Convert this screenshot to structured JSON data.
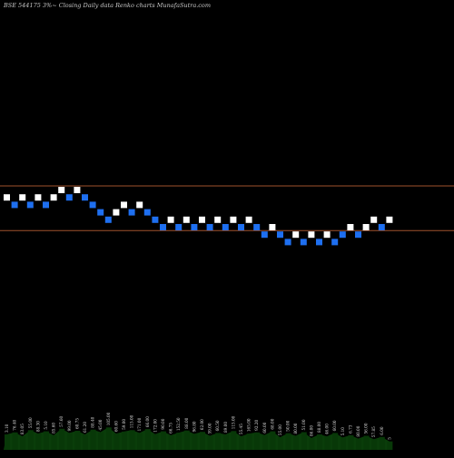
{
  "header": {
    "title": "BSE 544175 3%~ Closing Daily data  Renko  charts MunafaSutra.com"
  },
  "colors": {
    "background": "#000000",
    "up_brick": "#ffffff",
    "down_brick": "#1e6ff0",
    "reference_line": "#a0522d",
    "volume_fill": "#0a3d0a"
  },
  "chart_data": {
    "type": "renko",
    "title": "BSE 544175 3%~ Closing Daily data  Renko  charts MunafaSutra.com",
    "brick_step": "3%",
    "grid": false,
    "reference_levels": [
      0,
      -6
    ],
    "bricks": [
      {
        "dir": "up",
        "level": -1
      },
      {
        "dir": "down",
        "level": -2
      },
      {
        "dir": "up",
        "level": -1
      },
      {
        "dir": "down",
        "level": -2
      },
      {
        "dir": "up",
        "level": -1
      },
      {
        "dir": "down",
        "level": -2
      },
      {
        "dir": "up",
        "level": -1
      },
      {
        "dir": "up",
        "level": 0
      },
      {
        "dir": "down",
        "level": -1
      },
      {
        "dir": "up",
        "level": 0
      },
      {
        "dir": "down",
        "level": -1
      },
      {
        "dir": "down",
        "level": -2
      },
      {
        "dir": "down",
        "level": -3
      },
      {
        "dir": "down",
        "level": -4
      },
      {
        "dir": "up",
        "level": -3
      },
      {
        "dir": "up",
        "level": -2
      },
      {
        "dir": "down",
        "level": -3
      },
      {
        "dir": "up",
        "level": -2
      },
      {
        "dir": "down",
        "level": -3
      },
      {
        "dir": "down",
        "level": -4
      },
      {
        "dir": "down",
        "level": -5
      },
      {
        "dir": "up",
        "level": -4
      },
      {
        "dir": "down",
        "level": -5
      },
      {
        "dir": "up",
        "level": -4
      },
      {
        "dir": "down",
        "level": -5
      },
      {
        "dir": "up",
        "level": -4
      },
      {
        "dir": "down",
        "level": -5
      },
      {
        "dir": "up",
        "level": -4
      },
      {
        "dir": "down",
        "level": -5
      },
      {
        "dir": "up",
        "level": -4
      },
      {
        "dir": "down",
        "level": -5
      },
      {
        "dir": "up",
        "level": -4
      },
      {
        "dir": "down",
        "level": -5
      },
      {
        "dir": "down",
        "level": -6
      },
      {
        "dir": "up",
        "level": -5
      },
      {
        "dir": "down",
        "level": -6
      },
      {
        "dir": "down",
        "level": -7
      },
      {
        "dir": "up",
        "level": -6
      },
      {
        "dir": "down",
        "level": -7
      },
      {
        "dir": "up",
        "level": -6
      },
      {
        "dir": "down",
        "level": -7
      },
      {
        "dir": "up",
        "level": -6
      },
      {
        "dir": "down",
        "level": -7
      },
      {
        "dir": "down",
        "level": -6
      },
      {
        "dir": "up",
        "level": -5
      },
      {
        "dir": "down",
        "level": -6
      },
      {
        "dir": "up",
        "level": -5
      },
      {
        "dir": "up",
        "level": -4
      },
      {
        "dir": "down",
        "level": -5
      },
      {
        "dir": "up",
        "level": -4
      }
    ],
    "volume": {
      "values": [
        55,
        62,
        48,
        70,
        58,
        66,
        52,
        75,
        60,
        68,
        55,
        72,
        63,
        80,
        58,
        65,
        70,
        60,
        74,
        56,
        66,
        52,
        61,
        69,
        57,
        64,
        50,
        60,
        55,
        67,
        48,
        58,
        62,
        53,
        66,
        45,
        59,
        50,
        63,
        42,
        55,
        48,
        60,
        44,
        52,
        40,
        50,
        38,
        46,
        30
      ],
      "labels": [
        "3.10",
        "76.40",
        "83.05",
        "55.00",
        "88.30",
        "5.10",
        "85.60",
        "57.60",
        "99.00",
        "60.75",
        "61.20",
        "88.40",
        "45.00",
        "105.00",
        "60.60",
        "59.00",
        "115.00",
        "171.00",
        "66.00",
        "172.00",
        "90.00",
        "66.75",
        "152.50",
        "88.00",
        "96.80",
        "62.00",
        "59.00",
        "60.50",
        "89.00",
        "115.00",
        "55.45",
        "165.00",
        "92.20",
        "60.00",
        "68.00",
        "55.00",
        "50.00",
        "80.00",
        "51.00",
        "86.00",
        "88.00",
        "46.00",
        "60.00",
        "5.10",
        "6.73",
        "80.00",
        "56.00",
        "57.85",
        "6.00",
        "5"
      ]
    }
  }
}
